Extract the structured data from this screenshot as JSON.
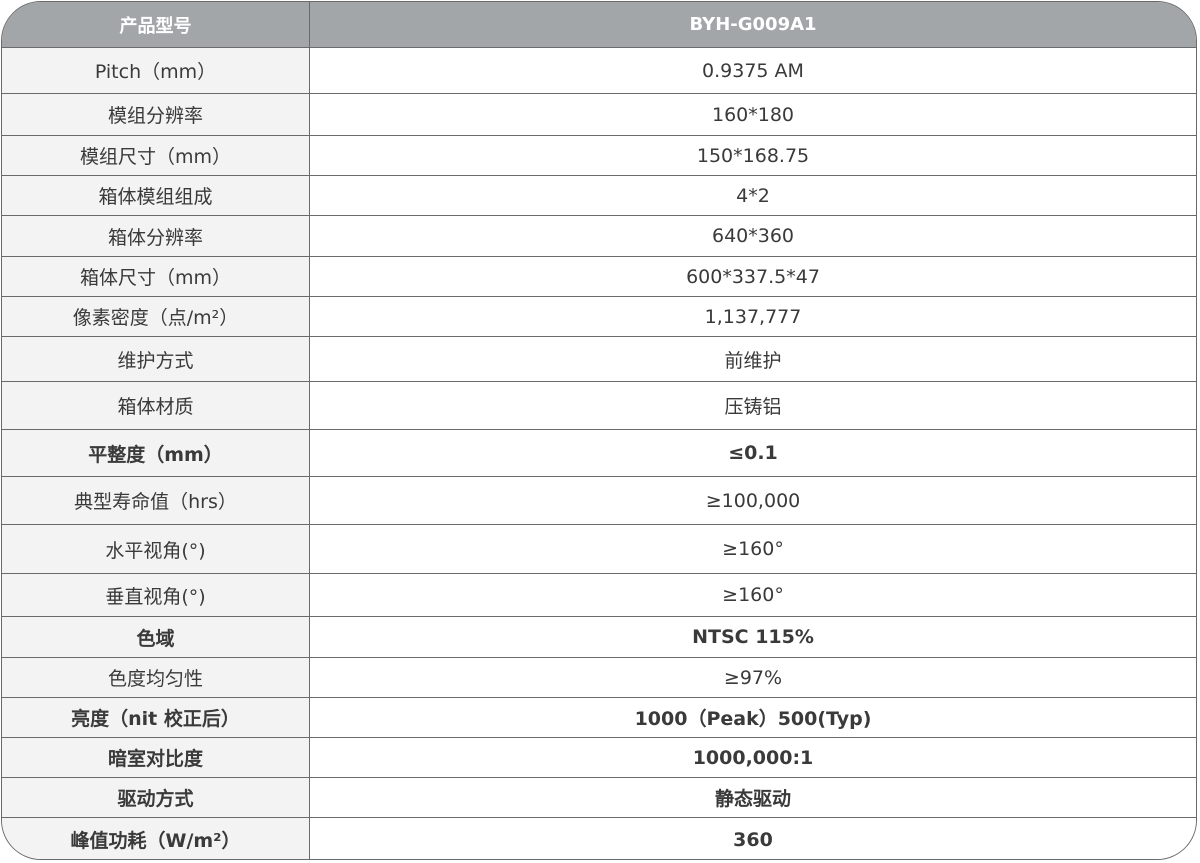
{
  "header": {
    "label": "产品型号",
    "value": "BYH-G009A1"
  },
  "rows": [
    {
      "label": "Pitch（mm）",
      "value": "0.9375 AM",
      "bold": false
    },
    {
      "label": "模组分辨率",
      "value": "160*180",
      "bold": false
    },
    {
      "label": "模组尺寸（mm）",
      "value": "150*168.75",
      "bold": false
    },
    {
      "label": "箱体模组组成",
      "value": "4*2",
      "bold": false
    },
    {
      "label": "箱体分辨率",
      "value": "640*360",
      "bold": false
    },
    {
      "label": "箱体尺寸（mm）",
      "value": "600*337.5*47",
      "bold": false
    },
    {
      "label": "像素密度（点/m²）",
      "value": "1,137,777",
      "bold": false
    },
    {
      "label": "维护方式",
      "value": "前维护",
      "bold": false
    },
    {
      "label": "箱体材质",
      "value": "压铸铝",
      "bold": false
    },
    {
      "label": "平整度（mm）",
      "value": "≤0.1",
      "bold": true
    },
    {
      "label": "典型寿命值（hrs）",
      "value": "≥100,000",
      "bold": false
    },
    {
      "label": "水平视角(°)",
      "value": "≥160°",
      "bold": false
    },
    {
      "label": "垂直视角(°)",
      "value": "≥160°",
      "bold": false
    },
    {
      "label": "色域",
      "value": "NTSC 115%",
      "bold": true
    },
    {
      "label": "色度均匀性",
      "value": "≥97%",
      "bold": false
    },
    {
      "label": "亮度（nit 校正后）",
      "value": "1000（Peak）500(Typ)",
      "bold": true
    },
    {
      "label": "暗室对比度",
      "value": "1000,000:1",
      "bold": true
    },
    {
      "label": "驱动方式",
      "value": "静态驱动",
      "bold": true
    },
    {
      "label": "峰值功耗（W/m²）",
      "value": "360",
      "bold": true
    }
  ]
}
